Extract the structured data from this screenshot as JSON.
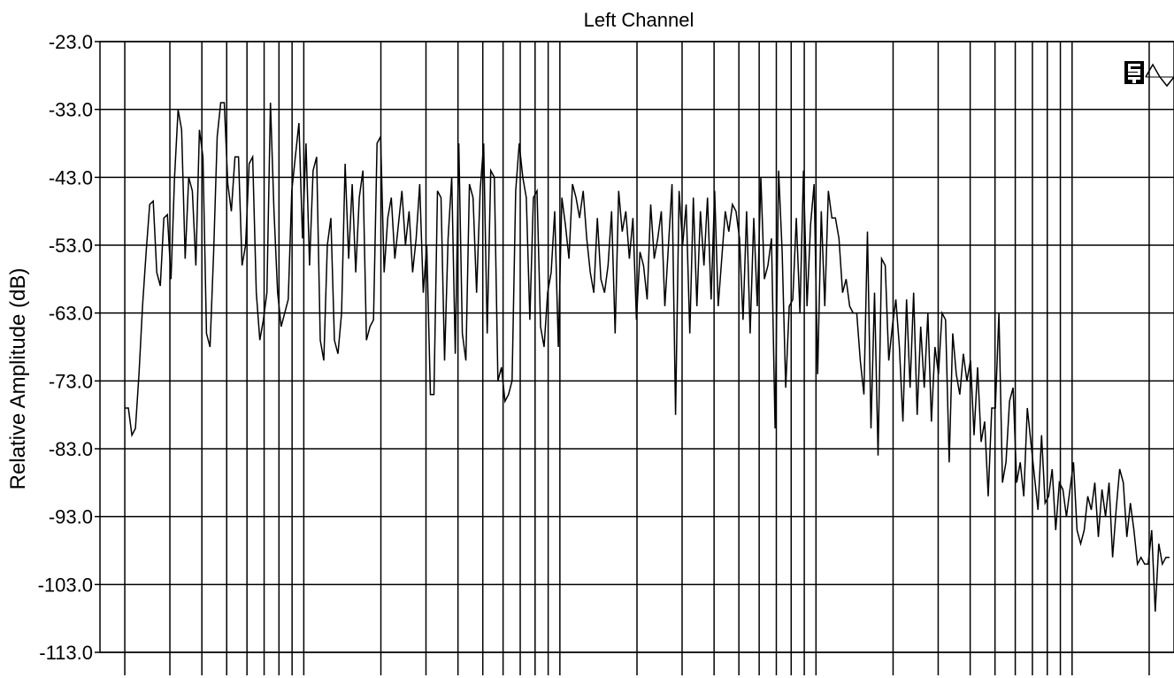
{
  "chart_data": {
    "type": "line",
    "title": "Left Channel",
    "xlabel": "",
    "ylabel": "Relative Amplitude (dB)",
    "x_scale": "log",
    "x_tick_labels_visible": false,
    "ylim": [
      -113.0,
      -23.0
    ],
    "y_ticks": [
      "-23.0",
      "-33.0",
      "-43.0",
      "-53.0",
      "-63.0",
      "-73.0",
      "-83.0",
      "-93.0",
      "-103.0",
      "-113.0"
    ],
    "grid": true,
    "legend": "none",
    "line_color": "#000000",
    "logo": "st-sine-icon",
    "series": [
      {
        "values": [
          -77,
          -77,
          -81,
          -80,
          -72,
          -62,
          -54,
          -47,
          -46.5,
          -57,
          -59,
          -49,
          -48.5,
          -58,
          -43,
          -33,
          -36,
          -55,
          -43,
          -45,
          -56,
          -36,
          -40,
          -66,
          -68,
          -54,
          -37,
          -32,
          -32,
          -44,
          -48,
          -40,
          -40,
          -56,
          -53,
          -41,
          -40,
          -60,
          -67,
          -64,
          -60,
          -32,
          -48,
          -60,
          -65,
          -63,
          -61,
          -45,
          -40,
          -35,
          -52,
          -38,
          -56,
          -42,
          -40,
          -67,
          -70,
          -53,
          -49,
          -67,
          -69,
          -63,
          -41,
          -55,
          -44,
          -57,
          -46,
          -42,
          -67,
          -65,
          -64,
          -38,
          -37,
          -57,
          -49,
          -46,
          -55,
          -50,
          -45,
          -53,
          -48,
          -57,
          -52,
          -44,
          -60,
          -53,
          -75,
          -75,
          -45,
          -46,
          -70,
          -52,
          -43,
          -69,
          -38,
          -66,
          -70,
          -44,
          -46,
          -60,
          -45,
          -38,
          -66,
          -42,
          -43,
          -73,
          -71,
          -76,
          -75,
          -73,
          -45,
          -38,
          -43,
          -46,
          -64,
          -46,
          -45,
          -65,
          -68,
          -60,
          -57,
          -48,
          -68,
          -46,
          -50,
          -55,
          -44,
          -46,
          -49,
          -45,
          -52,
          -57,
          -60,
          -49,
          -58,
          -60,
          -56,
          -48,
          -66,
          -45,
          -51,
          -48,
          -55,
          -49,
          -64,
          -54,
          -56,
          -61,
          -47,
          -55,
          -52,
          -48,
          -62,
          -53,
          -44,
          -78,
          -45,
          -53,
          -47,
          -66,
          -46,
          -62,
          -48,
          -56,
          -46,
          -61,
          -45,
          -62,
          -55,
          -48,
          -51,
          -47,
          -48,
          -52,
          -64,
          -48,
          -66,
          -49,
          -62,
          -43,
          -58,
          -56,
          -52,
          -80,
          -42,
          -54,
          -74,
          -62,
          -61,
          -49,
          -63,
          -42,
          -62,
          -50,
          -44,
          -72,
          -48,
          -62,
          -45,
          -49,
          -49,
          -52,
          -60,
          -58,
          -62,
          -63,
          -63,
          -70,
          -75,
          -51,
          -80,
          -60,
          -84,
          -55,
          -56,
          -70,
          -65,
          -61,
          -68,
          -79,
          -61,
          -74,
          -60,
          -78,
          -65,
          -74,
          -63,
          -79,
          -68,
          -72,
          -63,
          -64,
          -85,
          -66,
          -72,
          -75,
          -69,
          -73,
          -70,
          -81,
          -71,
          -82,
          -79,
          -90,
          -77,
          -77,
          -63,
          -88,
          -85,
          -76,
          -74,
          -88,
          -85,
          -90,
          -77,
          -82,
          -87,
          -92,
          -81,
          -91,
          -90,
          -86,
          -95,
          -88,
          -89,
          -93,
          -89,
          -85,
          -95,
          -97,
          -95,
          -90,
          -92,
          -88,
          -96,
          -89,
          -93,
          -88,
          -99,
          -92,
          -86,
          -88,
          -96,
          -91,
          -95,
          -100,
          -99,
          -100,
          -100,
          -95,
          -107,
          -97,
          -100,
          -99,
          -99
        ]
      }
    ]
  }
}
